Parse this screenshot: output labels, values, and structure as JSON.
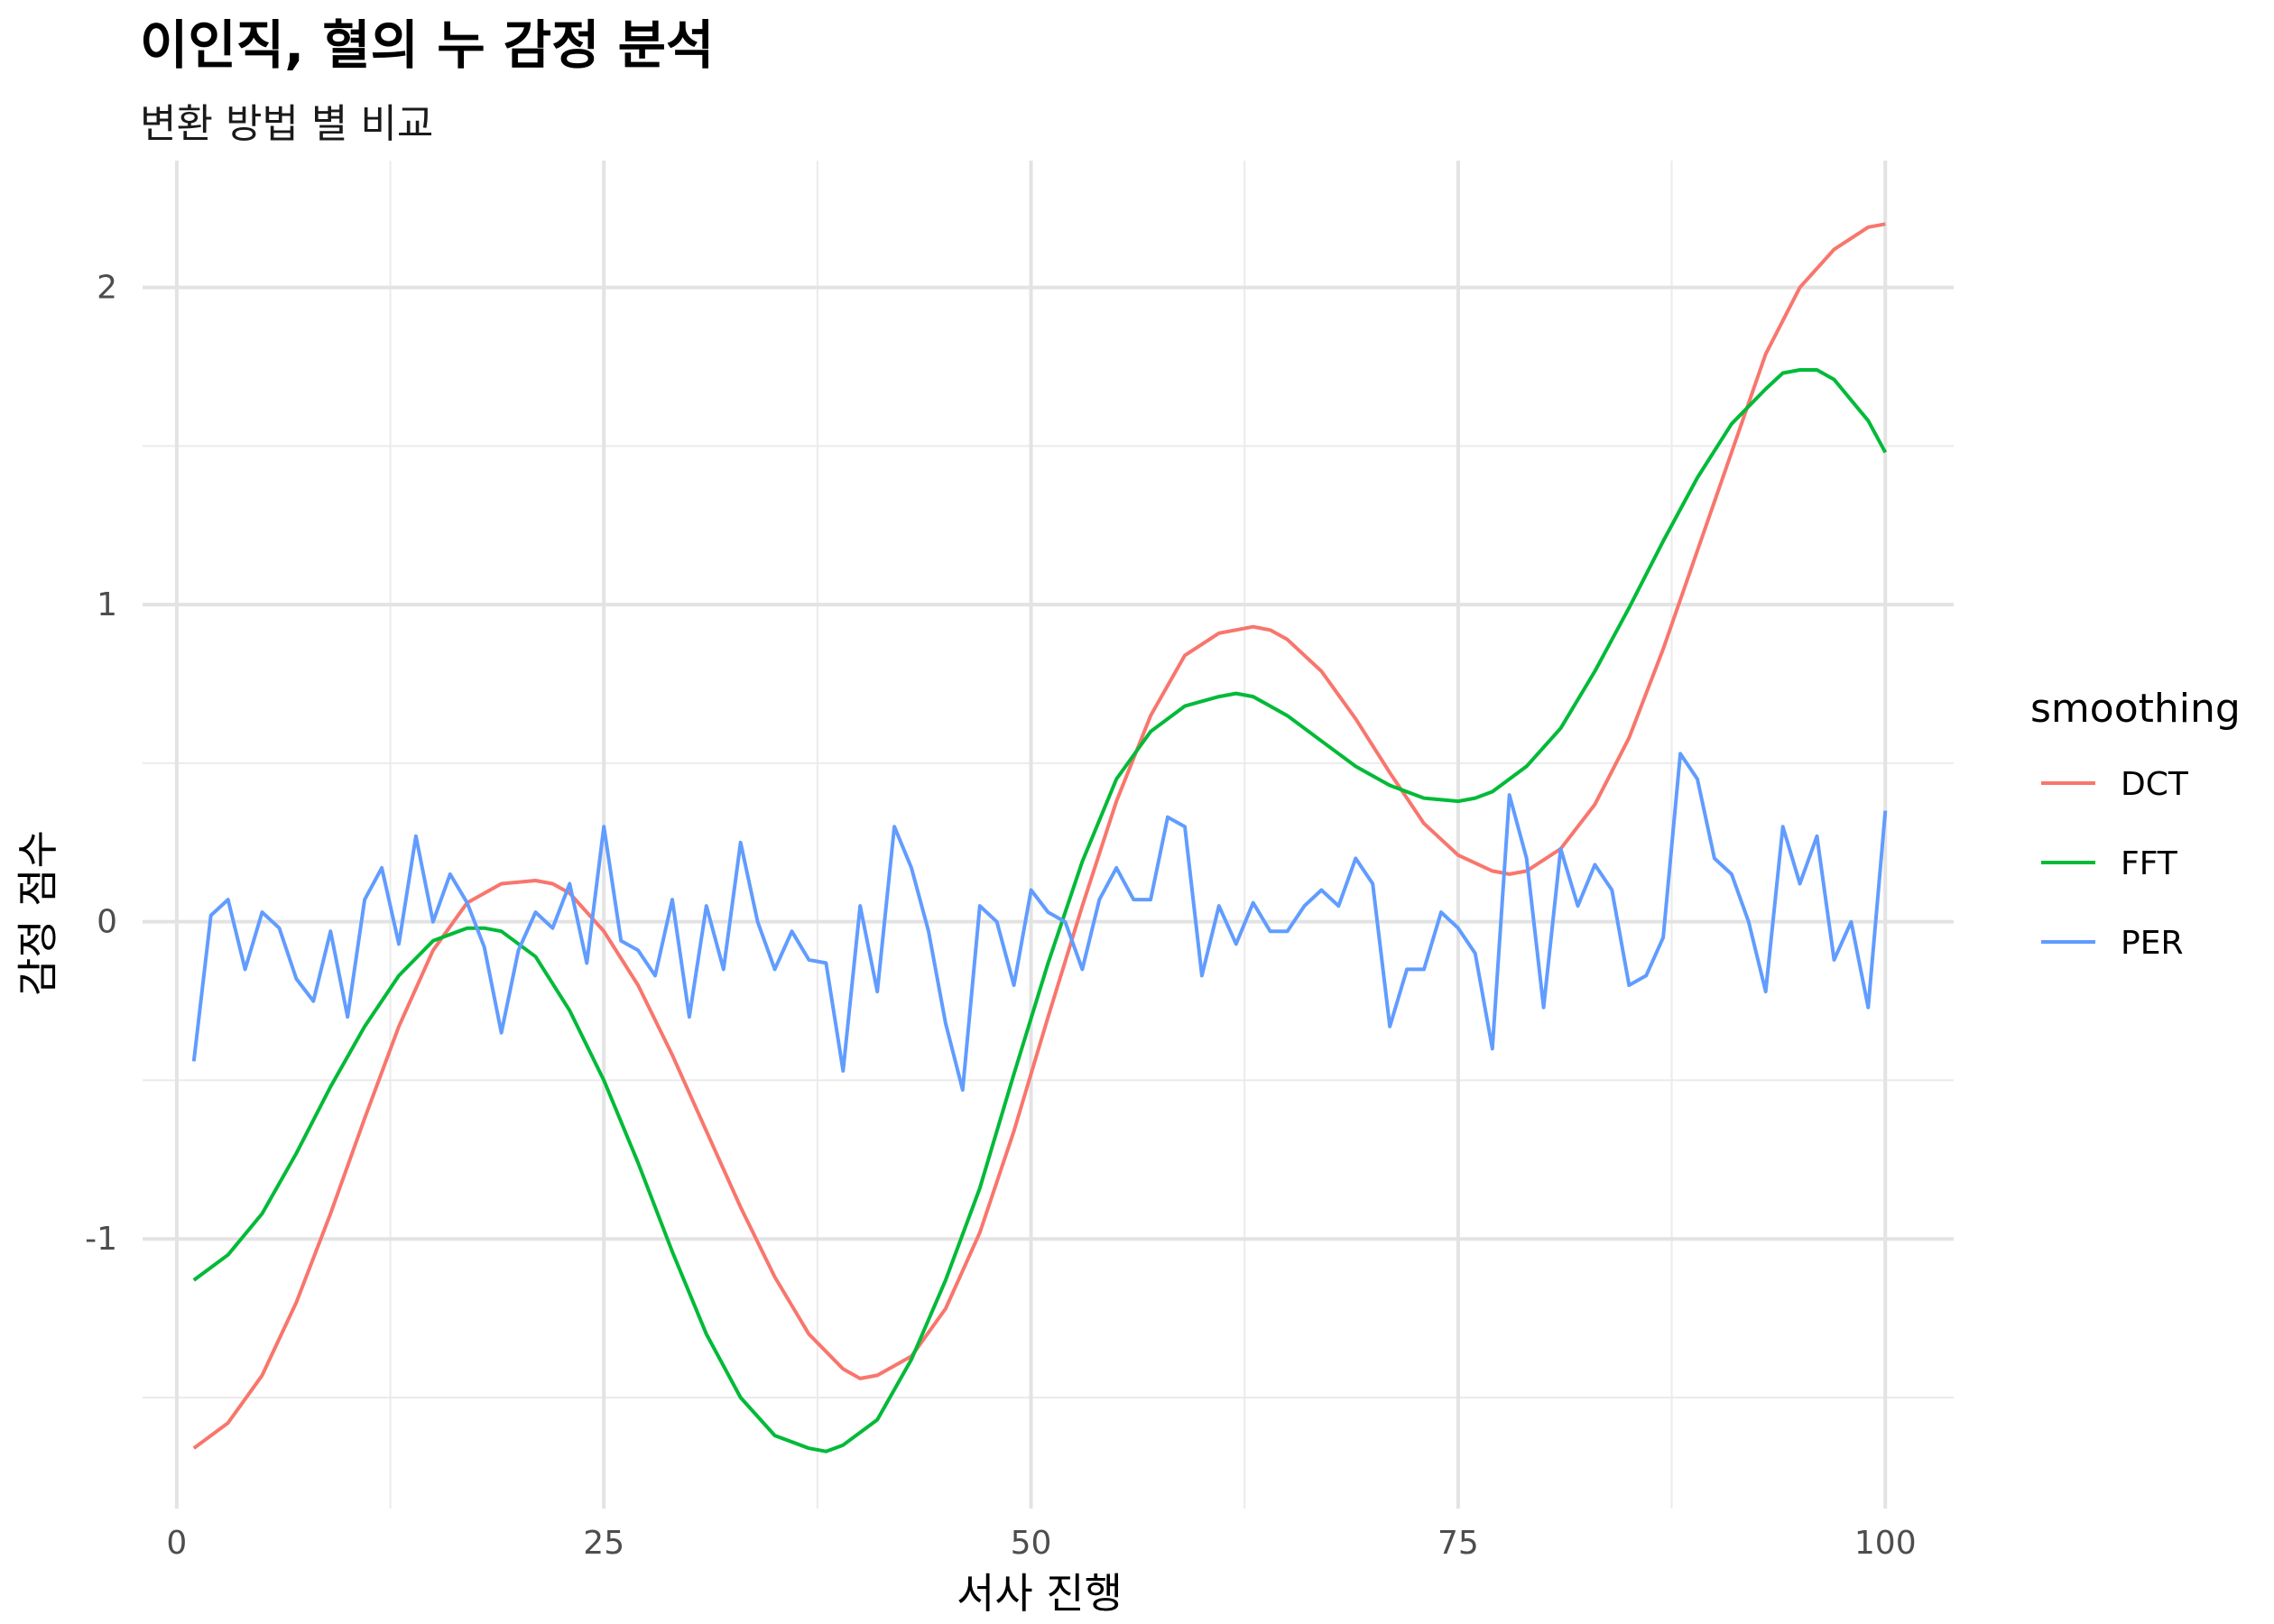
{
  "chart_data": {
    "type": "line",
    "title": "이인직, 혈의 누 감정 분석",
    "subtitle": "변환 방법 별 비교",
    "xlabel": "서사 진행",
    "ylabel": "감정 점수",
    "xlim": [
      -2,
      104
    ],
    "ylim": [
      -1.85,
      2.4
    ],
    "x_ticks": [
      0,
      25,
      50,
      75,
      100
    ],
    "x_tick_labels": [
      "0",
      "25",
      "50",
      "75",
      "100"
    ],
    "y_ticks": [
      -1,
      0,
      1,
      2
    ],
    "y_tick_labels": [
      "-1",
      "0",
      "1",
      "2"
    ],
    "grid": true,
    "legend": {
      "title": "smoothing",
      "position": "right"
    },
    "series": [
      {
        "name": "DCT",
        "color": "#F8766D",
        "x": [
          1,
          3,
          5,
          7,
          9,
          11,
          13,
          15,
          17,
          19,
          21,
          22,
          23,
          25,
          27,
          29,
          31,
          33,
          35,
          37,
          39,
          40,
          41,
          43,
          45,
          47,
          49,
          51,
          53,
          55,
          57,
          59,
          61,
          63,
          64,
          65,
          67,
          69,
          71,
          73,
          75,
          77,
          78,
          79,
          81,
          83,
          85,
          87,
          89,
          91,
          93,
          95,
          97,
          99,
          100
        ],
        "y": [
          -1.66,
          -1.58,
          -1.43,
          -1.2,
          -0.92,
          -0.62,
          -0.33,
          -0.09,
          0.06,
          0.12,
          0.13,
          0.12,
          0.09,
          -0.03,
          -0.2,
          -0.42,
          -0.66,
          -0.9,
          -1.12,
          -1.3,
          -1.41,
          -1.44,
          -1.43,
          -1.37,
          -1.22,
          -0.98,
          -0.66,
          -0.3,
          0.05,
          0.38,
          0.65,
          0.84,
          0.91,
          0.93,
          0.92,
          0.89,
          0.79,
          0.64,
          0.47,
          0.31,
          0.21,
          0.16,
          0.15,
          0.16,
          0.23,
          0.37,
          0.58,
          0.86,
          1.17,
          1.48,
          1.79,
          2.0,
          2.12,
          2.19,
          2.2
        ]
      },
      {
        "name": "FFT",
        "color": "#00BA38",
        "x": [
          1,
          3,
          5,
          7,
          9,
          11,
          13,
          15,
          17,
          18,
          19,
          21,
          23,
          25,
          27,
          29,
          31,
          33,
          35,
          37,
          38,
          39,
          41,
          43,
          45,
          47,
          49,
          51,
          53,
          55,
          57,
          59,
          61,
          62,
          63,
          65,
          67,
          69,
          71,
          73,
          75,
          76,
          77,
          79,
          81,
          83,
          85,
          87,
          89,
          91,
          93,
          94,
          95,
          96,
          97,
          99,
          100
        ],
        "y": [
          -1.13,
          -1.05,
          -0.92,
          -0.73,
          -0.52,
          -0.33,
          -0.17,
          -0.06,
          -0.02,
          -0.02,
          -0.03,
          -0.11,
          -0.28,
          -0.5,
          -0.76,
          -1.04,
          -1.3,
          -1.5,
          -1.62,
          -1.66,
          -1.67,
          -1.65,
          -1.57,
          -1.38,
          -1.13,
          -0.84,
          -0.48,
          -0.13,
          0.19,
          0.45,
          0.6,
          0.68,
          0.71,
          0.72,
          0.71,
          0.65,
          0.57,
          0.49,
          0.43,
          0.39,
          0.38,
          0.39,
          0.41,
          0.49,
          0.61,
          0.79,
          0.99,
          1.2,
          1.4,
          1.57,
          1.68,
          1.73,
          1.74,
          1.74,
          1.71,
          1.58,
          1.48
        ]
      },
      {
        "name": "PER",
        "color": "#619CFF",
        "x": [
          1,
          2,
          3,
          4,
          5,
          6,
          7,
          8,
          9,
          10,
          11,
          12,
          13,
          14,
          15,
          16,
          17,
          18,
          19,
          20,
          21,
          22,
          23,
          24,
          25,
          26,
          27,
          28,
          29,
          30,
          31,
          32,
          33,
          34,
          35,
          36,
          37,
          38,
          39,
          40,
          41,
          42,
          43,
          44,
          45,
          46,
          47,
          48,
          49,
          50,
          51,
          52,
          53,
          54,
          55,
          56,
          57,
          58,
          59,
          60,
          61,
          62,
          63,
          64,
          65,
          66,
          67,
          68,
          69,
          70,
          71,
          72,
          73,
          74,
          75,
          76,
          77,
          78,
          79,
          80,
          81,
          82,
          83,
          84,
          85,
          86,
          87,
          88,
          89,
          90,
          91,
          92,
          93,
          94,
          95,
          96,
          97,
          98,
          99,
          100
        ],
        "y": [
          -0.44,
          0.02,
          0.07,
          -0.15,
          0.03,
          -0.02,
          -0.18,
          -0.25,
          -0.03,
          -0.3,
          0.07,
          0.17,
          -0.07,
          0.27,
          0.0,
          0.15,
          0.06,
          -0.08,
          -0.35,
          -0.09,
          0.03,
          -0.02,
          0.12,
          -0.13,
          0.3,
          -0.06,
          -0.09,
          -0.17,
          0.07,
          -0.3,
          0.05,
          -0.15,
          0.25,
          0.0,
          -0.15,
          -0.03,
          -0.12,
          -0.13,
          -0.47,
          0.05,
          -0.22,
          0.3,
          0.17,
          -0.03,
          -0.32,
          -0.53,
          0.05,
          0.0,
          -0.2,
          0.1,
          0.03,
          0.0,
          -0.15,
          0.07,
          0.17,
          0.07,
          0.07,
          0.33,
          0.3,
          -0.17,
          0.05,
          -0.07,
          0.06,
          -0.03,
          -0.03,
          0.05,
          0.1,
          0.05,
          0.2,
          0.12,
          -0.33,
          -0.15,
          -0.15,
          0.03,
          -0.02,
          -0.1,
          -0.4,
          0.4,
          0.2,
          -0.27,
          0.23,
          0.05,
          0.18,
          0.1,
          -0.2,
          -0.17,
          -0.05,
          0.53,
          0.45,
          0.2,
          0.15,
          0.0,
          -0.22,
          0.3,
          0.12,
          0.27,
          -0.12,
          0.0,
          -0.27,
          0.35
        ]
      }
    ]
  }
}
